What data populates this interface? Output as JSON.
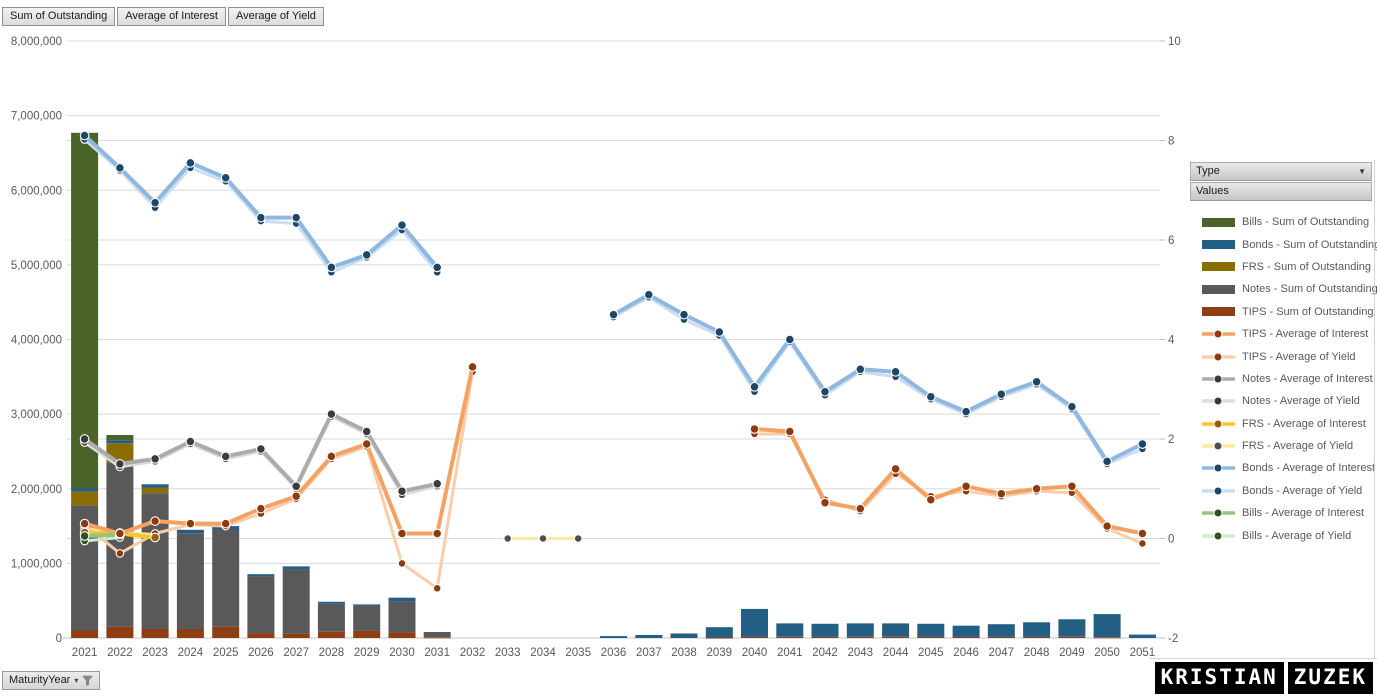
{
  "page": {
    "background": "#FFFFFF"
  },
  "pivot_buttons": {
    "outstanding": "Sum of Outstanding",
    "interest": "Average of Interest",
    "yield": "Average of Yield"
  },
  "legend": {
    "type_header": "Type",
    "values_header": "Values",
    "items": [
      {
        "label": "Bills - Sum of Outstanding",
        "swatch": "bar",
        "color": "#4A6328"
      },
      {
        "label": "Bonds - Sum of Outstanding",
        "swatch": "bar",
        "color": "#235E84"
      },
      {
        "label": "FRS - Sum of Outstanding",
        "swatch": "bar",
        "color": "#8A6D00"
      },
      {
        "label": "Notes - Sum of Outstanding",
        "swatch": "bar",
        "color": "#595959"
      },
      {
        "label": "TIPS - Sum of Outstanding",
        "swatch": "bar",
        "color": "#8E3E12"
      },
      {
        "label": "TIPS - Average of Interest",
        "swatch": "line",
        "color": "#F3A263",
        "marker": "#8E3A0F"
      },
      {
        "label": "TIPS - Average of Yield",
        "swatch": "line",
        "color": "#F9CDA9",
        "marker": "#8E3A0F"
      },
      {
        "label": "Notes - Average of Interest",
        "swatch": "line",
        "color": "#ABABAB",
        "marker": "#3B3B3B"
      },
      {
        "label": "Notes - Average of Yield",
        "swatch": "line",
        "color": "#DCDCDC",
        "marker": "#3B3B3B"
      },
      {
        "label": "FRS - Average of Interest",
        "swatch": "line",
        "color": "#FFC32B",
        "marker": "#9A5B0D"
      },
      {
        "label": "FRS - Average of Yield",
        "swatch": "line",
        "color": "#FFE9A0",
        "marker": "#4F4F4F"
      },
      {
        "label": "Bonds - Average of Interest",
        "swatch": "line",
        "color": "#8FB8E0",
        "marker": "#1E4666"
      },
      {
        "label": "Bonds - Average of Yield",
        "swatch": "line",
        "color": "#CADEF1",
        "marker": "#1E4666"
      },
      {
        "label": "Bills - Average of Interest",
        "swatch": "line",
        "color": "#90C97E",
        "marker": "#2F5220"
      },
      {
        "label": "Bills - Average of Yield",
        "swatch": "line",
        "color": "#D2EAC8",
        "marker": "#2F5220"
      }
    ]
  },
  "axis_filter": {
    "label": "MaturityYear"
  },
  "watermark": {
    "text1": "KRISTIAN",
    "text2": "ZUZEK"
  },
  "chart_data": {
    "type": "combo-stacked-bar-line",
    "grid": true,
    "categories": [
      "2021",
      "2022",
      "2023",
      "2024",
      "2025",
      "2026",
      "2027",
      "2028",
      "2029",
      "2030",
      "2031",
      "2032",
      "2033",
      "2034",
      "2035",
      "2036",
      "2037",
      "2038",
      "2039",
      "2040",
      "2041",
      "2042",
      "2043",
      "2044",
      "2045",
      "2046",
      "2047",
      "2048",
      "2049",
      "2050",
      "2051"
    ],
    "xlabel": "MaturityYear",
    "left_axis": {
      "min": 0,
      "max": 8000000,
      "step": 1000000,
      "tick_labels": [
        "0",
        "1,000,000",
        "2,000,000",
        "3,000,000",
        "4,000,000",
        "5,000,000",
        "6,000,000",
        "7,000,000",
        "8,000,000"
      ]
    },
    "right_axis": {
      "min": -2,
      "max": 10,
      "step": 2,
      "tick_labels": [
        "-2",
        "0",
        "2",
        "4",
        "6",
        "8",
        "10"
      ]
    },
    "bar_series": [
      {
        "name": "TIPS - Sum of Outstanding",
        "color": "#8E3E12",
        "values": [
          100000,
          150000,
          120000,
          120000,
          150000,
          65000,
          55000,
          85000,
          95000,
          75000,
          10000,
          0,
          0,
          0,
          0,
          0,
          0,
          0,
          5000,
          15000,
          15000,
          15000,
          15000,
          15000,
          15000,
          15000,
          15000,
          15000,
          15000,
          10000,
          0
        ]
      },
      {
        "name": "Notes - Sum of Outstanding",
        "color": "#595959",
        "values": [
          1680000,
          2200000,
          1820000,
          1285000,
          1305000,
          760000,
          865000,
          375000,
          335000,
          420000,
          70000,
          0,
          0,
          0,
          0,
          0,
          0,
          0,
          0,
          0,
          0,
          0,
          0,
          0,
          0,
          0,
          0,
          0,
          0,
          0,
          0
        ]
      },
      {
        "name": "FRS - Sum of Outstanding",
        "color": "#8A6D00",
        "values": [
          185000,
          260000,
          75000,
          0,
          0,
          0,
          0,
          0,
          0,
          0,
          0,
          0,
          0,
          0,
          0,
          0,
          0,
          0,
          0,
          0,
          0,
          0,
          0,
          0,
          0,
          0,
          0,
          0,
          0,
          0,
          0
        ]
      },
      {
        "name": "Bonds - Sum of Outstanding",
        "color": "#235E84",
        "values": [
          45000,
          40000,
          45000,
          45000,
          45000,
          30000,
          40000,
          25000,
          20000,
          45000,
          0,
          0,
          0,
          0,
          0,
          25000,
          40000,
          60000,
          140000,
          375000,
          180000,
          175000,
          180000,
          180000,
          175000,
          150000,
          170000,
          195000,
          235000,
          310000,
          45000
        ]
      },
      {
        "name": "Bills - Sum of Outstanding",
        "color": "#4A6328",
        "values": [
          4760000,
          70000,
          0,
          0,
          0,
          0,
          0,
          0,
          0,
          0,
          0,
          0,
          0,
          0,
          0,
          0,
          0,
          0,
          0,
          0,
          0,
          0,
          0,
          0,
          0,
          0,
          0,
          0,
          0,
          0,
          0
        ]
      }
    ],
    "line_series": [
      {
        "name": "Notes - Average of Yield",
        "color": "#DCDCDC",
        "marker": "#3B3B3B",
        "width": 3,
        "r": 3.8,
        "values": [
          1.93,
          1.44,
          1.55,
          1.9,
          1.6,
          1.75,
          1.0,
          2.45,
          2.1,
          0.88,
          1.05,
          null,
          null,
          null,
          null,
          null,
          null,
          null,
          null,
          null,
          null,
          null,
          null,
          null,
          null,
          null,
          null,
          null,
          null,
          null,
          null
        ]
      },
      {
        "name": "FRS - Average of Yield",
        "color": "#FFE9A0",
        "marker": "#4F4F4F",
        "width": 3,
        "r": 3.8,
        "values": [
          0.2,
          0.12,
          0.08,
          null,
          null,
          null,
          null,
          null,
          null,
          null,
          null,
          null,
          0.0,
          0.0,
          0.0,
          null,
          null,
          null,
          null,
          null,
          null,
          null,
          null,
          null,
          null,
          null,
          null,
          null,
          null,
          null,
          null
        ]
      },
      {
        "name": "Bills - Average of Yield",
        "color": "#D2EAC8",
        "marker": "#2F5220",
        "width": 3,
        "r": 3.8,
        "values": [
          -0.05,
          0.02,
          null,
          null,
          null,
          null,
          null,
          null,
          null,
          null,
          null,
          null,
          null,
          null,
          null,
          null,
          null,
          null,
          null,
          null,
          null,
          null,
          null,
          null,
          null,
          null,
          null,
          null,
          null,
          null,
          null
        ]
      },
      {
        "name": "Bonds - Average of Yield",
        "color": "#CADEF1",
        "marker": "#1E4666",
        "width": 3,
        "r": 3.8,
        "values": [
          8.02,
          7.4,
          6.65,
          7.45,
          7.18,
          6.38,
          6.33,
          5.35,
          5.65,
          6.2,
          5.35,
          null,
          null,
          null,
          null,
          4.45,
          4.85,
          4.4,
          4.08,
          2.95,
          3.95,
          2.88,
          3.35,
          3.25,
          2.8,
          2.5,
          2.85,
          3.1,
          2.6,
          1.5,
          1.8
        ]
      },
      {
        "name": "TIPS - Average of Yield",
        "color": "#F9CDA9",
        "marker": "#8E3A0F",
        "width": 3,
        "r": 3.8,
        "values": [
          0.28,
          -0.3,
          0.1,
          0.28,
          0.25,
          0.5,
          0.8,
          1.6,
          1.85,
          -0.5,
          -1.0,
          3.35,
          null,
          null,
          null,
          null,
          null,
          null,
          null,
          2.1,
          2.1,
          0.78,
          0.55,
          1.3,
          0.85,
          0.95,
          0.85,
          0.95,
          0.92,
          0.2,
          -0.1
        ]
      },
      {
        "name": "Notes - Average of Interest",
        "color": "#ABABAB",
        "marker": "#3B3B3B",
        "width": 4,
        "r": 4.3,
        "values": [
          2.0,
          1.5,
          1.6,
          1.95,
          1.65,
          1.8,
          1.05,
          2.5,
          2.15,
          0.95,
          1.1,
          null,
          null,
          null,
          null,
          null,
          null,
          null,
          null,
          null,
          null,
          null,
          null,
          null,
          null,
          null,
          null,
          null,
          null,
          null,
          null
        ]
      },
      {
        "name": "FRS - Average of Interest",
        "color": "#FFC32B",
        "marker": "#9A5B0D",
        "width": 4,
        "r": 4.3,
        "values": [
          0.12,
          0.1,
          0.02,
          null,
          null,
          null,
          null,
          null,
          null,
          null,
          null,
          null,
          null,
          null,
          null,
          null,
          null,
          null,
          null,
          null,
          null,
          null,
          null,
          null,
          null,
          null,
          null,
          null,
          null,
          null,
          null
        ]
      },
      {
        "name": "Bills - Average of Interest",
        "color": "#90C97E",
        "marker": "#2F5220",
        "width": 4,
        "r": 4.3,
        "values": [
          0.05,
          0.08,
          null,
          null,
          null,
          null,
          null,
          null,
          null,
          null,
          null,
          null,
          null,
          null,
          null,
          null,
          null,
          null,
          null,
          null,
          null,
          null,
          null,
          null,
          null,
          null,
          null,
          null,
          null,
          null,
          null
        ]
      },
      {
        "name": "Bonds - Average of Interest",
        "color": "#8FB8E0",
        "marker": "#1E4666",
        "width": 4,
        "r": 4.3,
        "values": [
          8.1,
          7.45,
          6.75,
          7.55,
          7.25,
          6.45,
          6.45,
          5.45,
          5.7,
          6.3,
          5.45,
          null,
          null,
          null,
          null,
          4.5,
          4.9,
          4.5,
          4.15,
          3.05,
          4.0,
          2.95,
          3.4,
          3.35,
          2.85,
          2.55,
          2.9,
          3.15,
          2.65,
          1.55,
          1.9
        ]
      },
      {
        "name": "TIPS - Average of Interest",
        "color": "#F3A263",
        "marker": "#8E3A0F",
        "width": 4,
        "r": 4.3,
        "values": [
          0.3,
          0.1,
          0.35,
          0.3,
          0.3,
          0.6,
          0.85,
          1.65,
          1.9,
          0.1,
          0.1,
          3.45,
          null,
          null,
          null,
          null,
          null,
          null,
          null,
          2.2,
          2.15,
          0.72,
          0.6,
          1.4,
          0.78,
          1.05,
          0.9,
          1.0,
          1.05,
          0.25,
          0.1
        ]
      }
    ]
  }
}
